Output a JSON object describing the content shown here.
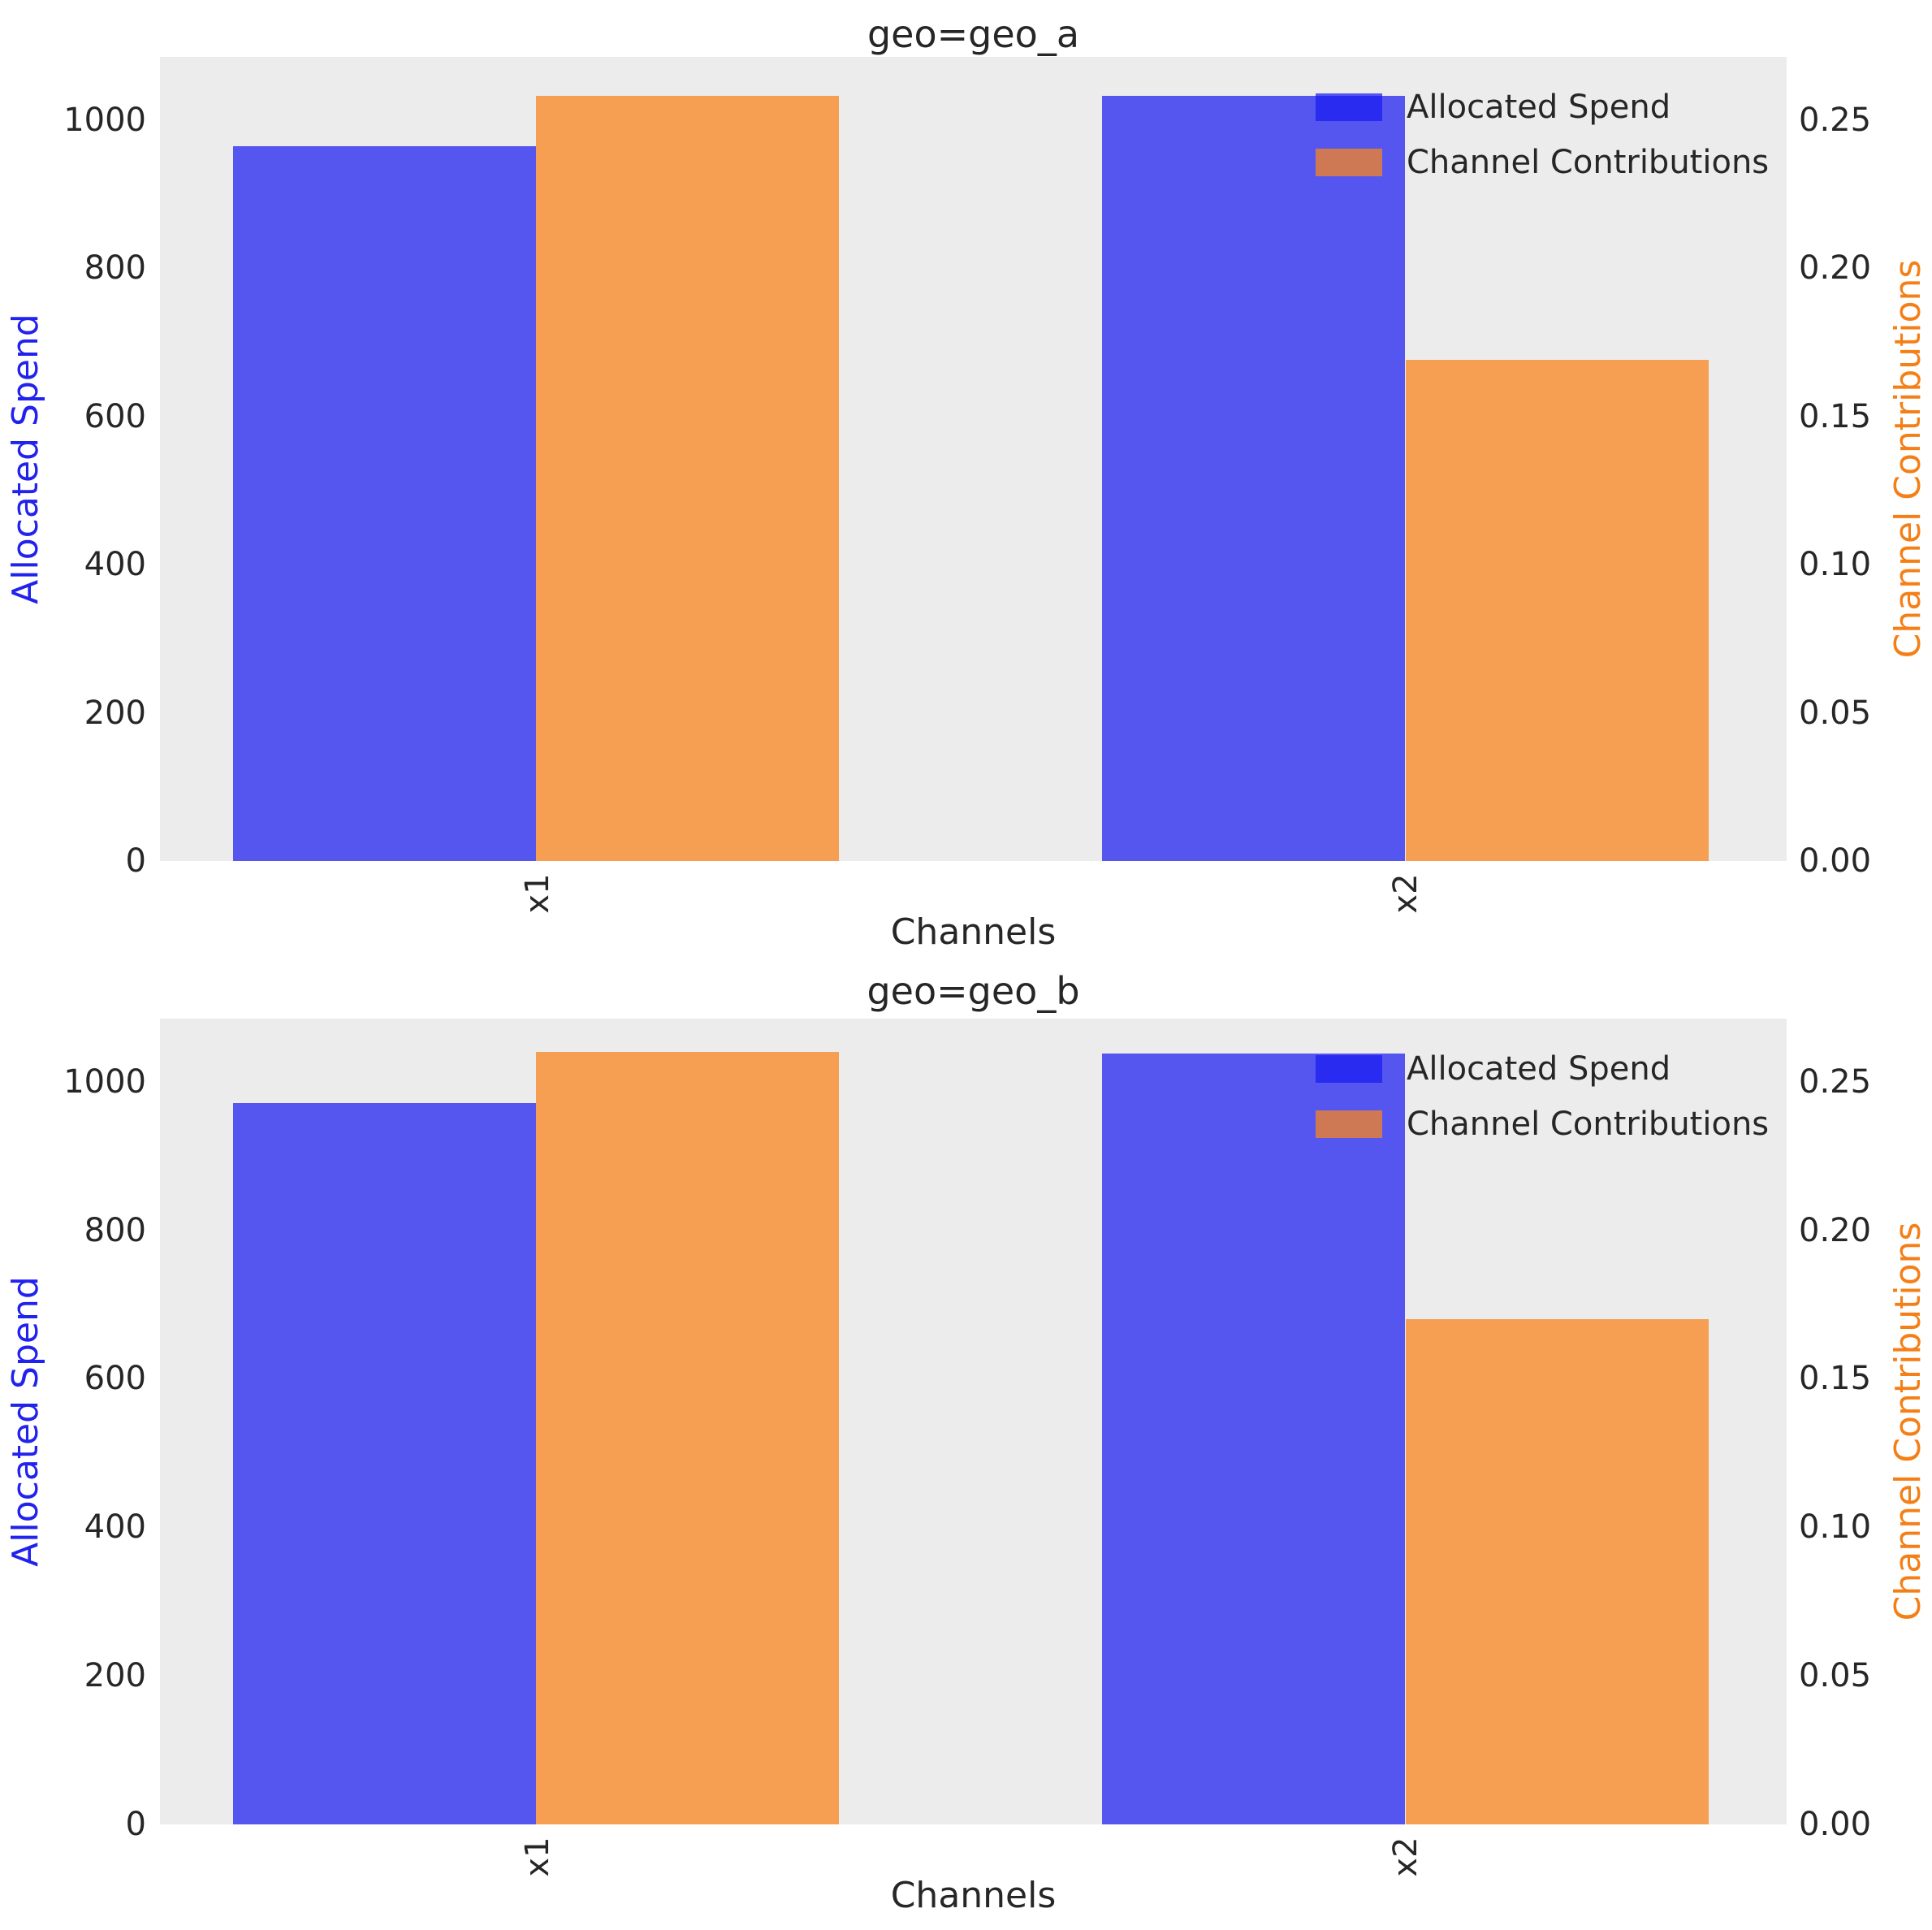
{
  "style": {
    "figure_bg": "#ffffff",
    "axes_bg": "#ececec",
    "bar_color_spend": "rgba(25,28,240,0.72)",
    "bar_color_contrib": "rgba(250,132,30,0.74)",
    "tick_color": "#262626",
    "title_color": "#262626",
    "ylabel_left_color": "#2222ee",
    "ylabel_right_color": "#f57f17"
  },
  "legend": {
    "items": [
      {
        "label": "Allocated Spend",
        "swatch": "spend-swatch"
      },
      {
        "label": "Channel Contributions",
        "swatch": "contrib-swatch"
      }
    ]
  },
  "chart_data": [
    {
      "type": "bar",
      "title": "geo=geo_a",
      "categories": [
        "x1",
        "x2"
      ],
      "series": [
        {
          "name": "Allocated Spend",
          "axis": "left",
          "values": [
            965,
            1032
          ]
        },
        {
          "name": "Channel Contributions",
          "axis": "right",
          "values": [
            0.258,
            0.169
          ]
        }
      ],
      "xlabel": "Channels",
      "ylabel_left": "Allocated Spend",
      "ylabel_right": "Channel Contributions",
      "ylim_left": [
        0,
        1085
      ],
      "ylim_right": [
        0,
        0.27125
      ],
      "yticks_left": [
        "0",
        "200",
        "400",
        "600",
        "800",
        "1000"
      ],
      "yticks_left_values": [
        0,
        200,
        400,
        600,
        800,
        1000
      ],
      "yticks_right": [
        "0.00",
        "0.05",
        "0.10",
        "0.15",
        "0.20",
        "0.25"
      ],
      "yticks_right_values": [
        0,
        0.05,
        0.1,
        0.15,
        0.2,
        0.25
      ],
      "legend_position": "upper right",
      "grid": false
    },
    {
      "type": "bar",
      "title": "geo=geo_b",
      "categories": [
        "x1",
        "x2"
      ],
      "series": [
        {
          "name": "Allocated Spend",
          "axis": "left",
          "values": [
            971,
            1038
          ]
        },
        {
          "name": "Channel Contributions",
          "axis": "right",
          "values": [
            0.26,
            0.17
          ]
        }
      ],
      "xlabel": "Channels",
      "ylabel_left": "Allocated Spend",
      "ylabel_right": "Channel Contributions",
      "ylim_left": [
        0,
        1085
      ],
      "ylim_right": [
        0,
        0.27125
      ],
      "yticks_left": [
        "0",
        "200",
        "400",
        "600",
        "800",
        "1000"
      ],
      "yticks_left_values": [
        0,
        200,
        400,
        600,
        800,
        1000
      ],
      "yticks_right": [
        "0.00",
        "0.05",
        "0.10",
        "0.15",
        "0.20",
        "0.25"
      ],
      "yticks_right_values": [
        0,
        0.05,
        0.1,
        0.15,
        0.2,
        0.25
      ],
      "legend_position": "upper right",
      "grid": false
    }
  ]
}
